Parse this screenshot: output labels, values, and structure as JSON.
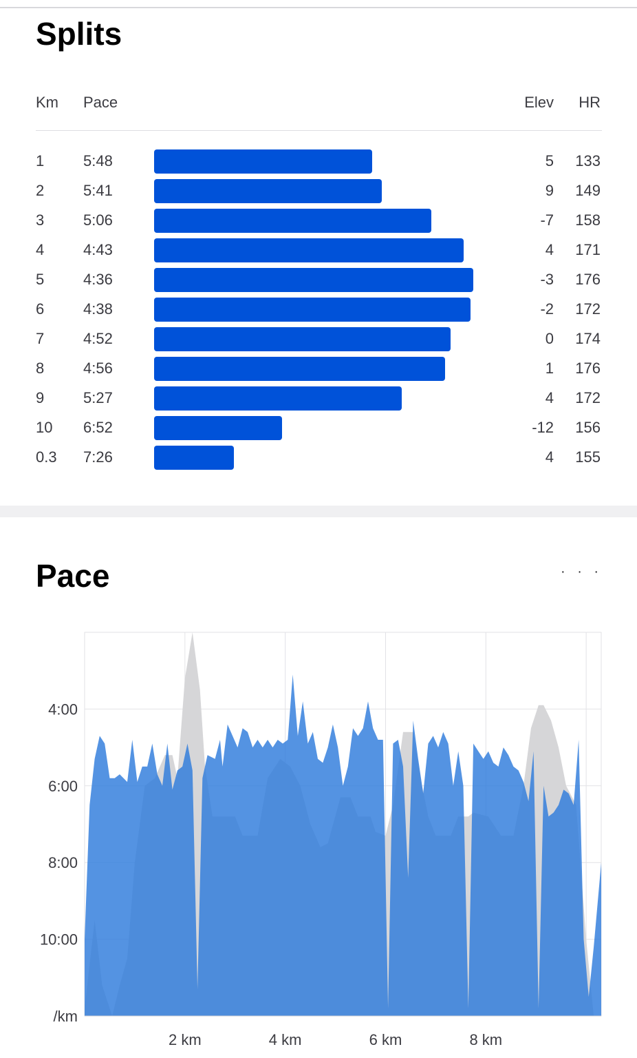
{
  "splits": {
    "title": "Splits",
    "headers": {
      "km": "Km",
      "pace": "Pace",
      "elev": "Elev",
      "hr": "HR"
    },
    "bar_color": "#0052d9",
    "rows": [
      {
        "km": "1",
        "pace": "5:48",
        "elev": "5",
        "hr": "133"
      },
      {
        "km": "2",
        "pace": "5:41",
        "elev": "9",
        "hr": "149"
      },
      {
        "km": "3",
        "pace": "5:06",
        "elev": "-7",
        "hr": "158"
      },
      {
        "km": "4",
        "pace": "4:43",
        "elev": "4",
        "hr": "171"
      },
      {
        "km": "5",
        "pace": "4:36",
        "elev": "-3",
        "hr": "176"
      },
      {
        "km": "6",
        "pace": "4:38",
        "elev": "-2",
        "hr": "172"
      },
      {
        "km": "7",
        "pace": "4:52",
        "elev": "0",
        "hr": "174"
      },
      {
        "km": "8",
        "pace": "4:56",
        "elev": "1",
        "hr": "176"
      },
      {
        "km": "9",
        "pace": "5:27",
        "elev": "4",
        "hr": "172"
      },
      {
        "km": "10",
        "pace": "6:52",
        "elev": "-12",
        "hr": "156"
      },
      {
        "km": "0.3",
        "pace": "7:26",
        "elev": "4",
        "hr": "155"
      }
    ]
  },
  "pace": {
    "title": "Pace",
    "more_icon": "more-dots-icon",
    "more_glyph": "· · ·"
  },
  "chart_data": {
    "type": "area",
    "title": "",
    "xlabel": "",
    "ylabel": "",
    "y_unit_label": "/km",
    "grid": true,
    "legend": "none",
    "x_ticks": [
      2,
      4,
      6,
      8
    ],
    "x_tick_labels": [
      "2 km",
      "4 km",
      "6 km",
      "8 km"
    ],
    "y_ticks": [
      4,
      6,
      8,
      10
    ],
    "y_tick_labels": [
      "4:00",
      "6:00",
      "8:00",
      "10:00"
    ],
    "xlim": [
      0,
      10.3
    ],
    "ylim_pace_min_per_km": [
      2,
      12
    ],
    "series": [
      {
        "color": "#d6d6d8",
        "points": [
          [
            0,
            11.8
          ],
          [
            0.2,
            9.5
          ],
          [
            0.35,
            11.2
          ],
          [
            0.55,
            12.0
          ],
          [
            0.7,
            11.2
          ],
          [
            0.85,
            10.5
          ],
          [
            1.0,
            8.0
          ],
          [
            1.2,
            6.0
          ],
          [
            1.4,
            5.8
          ],
          [
            1.6,
            5.2
          ],
          [
            1.75,
            5.2
          ],
          [
            1.85,
            5.8
          ],
          [
            2.0,
            3.2
          ],
          [
            2.15,
            2.0
          ],
          [
            2.3,
            3.5
          ],
          [
            2.4,
            5.5
          ],
          [
            2.55,
            6.8
          ],
          [
            3.0,
            6.8
          ],
          [
            3.15,
            7.3
          ],
          [
            3.45,
            7.3
          ],
          [
            3.65,
            5.8
          ],
          [
            3.9,
            5.3
          ],
          [
            4.1,
            5.5
          ],
          [
            4.3,
            6.0
          ],
          [
            4.5,
            7.0
          ],
          [
            4.7,
            7.6
          ],
          [
            4.85,
            7.5
          ],
          [
            5.1,
            6.3
          ],
          [
            5.3,
            6.3
          ],
          [
            5.45,
            6.8
          ],
          [
            5.7,
            6.8
          ],
          [
            5.8,
            7.2
          ],
          [
            6.0,
            7.3
          ],
          [
            6.15,
            6.5
          ],
          [
            6.35,
            4.6
          ],
          [
            6.55,
            4.6
          ],
          [
            6.7,
            5.8
          ],
          [
            6.85,
            6.8
          ],
          [
            7.0,
            7.3
          ],
          [
            7.3,
            7.3
          ],
          [
            7.45,
            6.8
          ],
          [
            7.65,
            6.8
          ],
          [
            7.75,
            6.7
          ],
          [
            8.05,
            6.8
          ],
          [
            8.3,
            7.3
          ],
          [
            8.55,
            7.3
          ],
          [
            8.75,
            6.0
          ],
          [
            8.9,
            4.5
          ],
          [
            9.05,
            3.9
          ],
          [
            9.15,
            3.9
          ],
          [
            9.3,
            4.3
          ],
          [
            9.45,
            5.0
          ],
          [
            9.6,
            6.0
          ],
          [
            9.8,
            6.5
          ],
          [
            10.0,
            10.0
          ],
          [
            10.15,
            12.0
          ],
          [
            10.3,
            12.0
          ]
        ]
      },
      {
        "color": "#2e7bdc",
        "opacity": 0.82,
        "points": [
          [
            0,
            10.0
          ],
          [
            0.1,
            6.5
          ],
          [
            0.2,
            5.3
          ],
          [
            0.3,
            4.7
          ],
          [
            0.4,
            4.9
          ],
          [
            0.5,
            5.8
          ],
          [
            0.6,
            5.8
          ],
          [
            0.7,
            5.7
          ],
          [
            0.85,
            5.9
          ],
          [
            0.95,
            4.8
          ],
          [
            1.05,
            5.9
          ],
          [
            1.15,
            5.5
          ],
          [
            1.25,
            5.5
          ],
          [
            1.35,
            4.9
          ],
          [
            1.45,
            5.7
          ],
          [
            1.55,
            6.0
          ],
          [
            1.65,
            4.9
          ],
          [
            1.75,
            6.1
          ],
          [
            1.85,
            5.6
          ],
          [
            1.95,
            5.5
          ],
          [
            2.05,
            4.9
          ],
          [
            2.15,
            5.6
          ],
          [
            2.25,
            11.3
          ],
          [
            2.35,
            5.8
          ],
          [
            2.45,
            5.2
          ],
          [
            2.6,
            5.3
          ],
          [
            2.7,
            4.8
          ],
          [
            2.75,
            5.5
          ],
          [
            2.85,
            4.4
          ],
          [
            2.95,
            4.7
          ],
          [
            3.05,
            5.0
          ],
          [
            3.15,
            4.5
          ],
          [
            3.25,
            4.6
          ],
          [
            3.35,
            5.0
          ],
          [
            3.45,
            4.8
          ],
          [
            3.55,
            5.0
          ],
          [
            3.65,
            4.8
          ],
          [
            3.75,
            5.0
          ],
          [
            3.85,
            4.8
          ],
          [
            3.95,
            4.9
          ],
          [
            4.05,
            4.8
          ],
          [
            4.15,
            3.1
          ],
          [
            4.25,
            4.7
          ],
          [
            4.35,
            3.8
          ],
          [
            4.45,
            4.9
          ],
          [
            4.55,
            4.6
          ],
          [
            4.65,
            5.3
          ],
          [
            4.75,
            5.4
          ],
          [
            4.85,
            5.0
          ],
          [
            4.95,
            4.4
          ],
          [
            5.05,
            5.0
          ],
          [
            5.15,
            6.0
          ],
          [
            5.25,
            5.5
          ],
          [
            5.35,
            4.5
          ],
          [
            5.45,
            4.7
          ],
          [
            5.55,
            4.5
          ],
          [
            5.65,
            3.8
          ],
          [
            5.75,
            4.5
          ],
          [
            5.85,
            4.8
          ],
          [
            5.95,
            4.8
          ],
          [
            6.05,
            11.8
          ],
          [
            6.15,
            4.9
          ],
          [
            6.25,
            4.8
          ],
          [
            6.35,
            5.5
          ],
          [
            6.45,
            8.4
          ],
          [
            6.55,
            4.3
          ],
          [
            6.65,
            5.3
          ],
          [
            6.75,
            6.2
          ],
          [
            6.85,
            4.9
          ],
          [
            6.95,
            4.7
          ],
          [
            7.05,
            5.0
          ],
          [
            7.15,
            4.6
          ],
          [
            7.25,
            4.9
          ],
          [
            7.35,
            6.0
          ],
          [
            7.45,
            5.1
          ],
          [
            7.55,
            6.0
          ],
          [
            7.65,
            11.8
          ],
          [
            7.75,
            4.9
          ],
          [
            7.85,
            5.1
          ],
          [
            7.95,
            5.3
          ],
          [
            8.05,
            5.1
          ],
          [
            8.15,
            5.4
          ],
          [
            8.25,
            5.5
          ],
          [
            8.35,
            5.0
          ],
          [
            8.45,
            5.2
          ],
          [
            8.55,
            5.5
          ],
          [
            8.65,
            5.6
          ],
          [
            8.75,
            5.9
          ],
          [
            8.85,
            6.4
          ],
          [
            8.95,
            5.1
          ],
          [
            9.05,
            11.8
          ],
          [
            9.15,
            6.0
          ],
          [
            9.25,
            6.8
          ],
          [
            9.35,
            6.7
          ],
          [
            9.45,
            6.5
          ],
          [
            9.55,
            6.1
          ],
          [
            9.65,
            6.2
          ],
          [
            9.75,
            6.5
          ],
          [
            9.85,
            4.8
          ],
          [
            9.95,
            10.0
          ],
          [
            10.05,
            11.5
          ],
          [
            10.15,
            10.2
          ],
          [
            10.3,
            8.0
          ]
        ]
      }
    ]
  }
}
